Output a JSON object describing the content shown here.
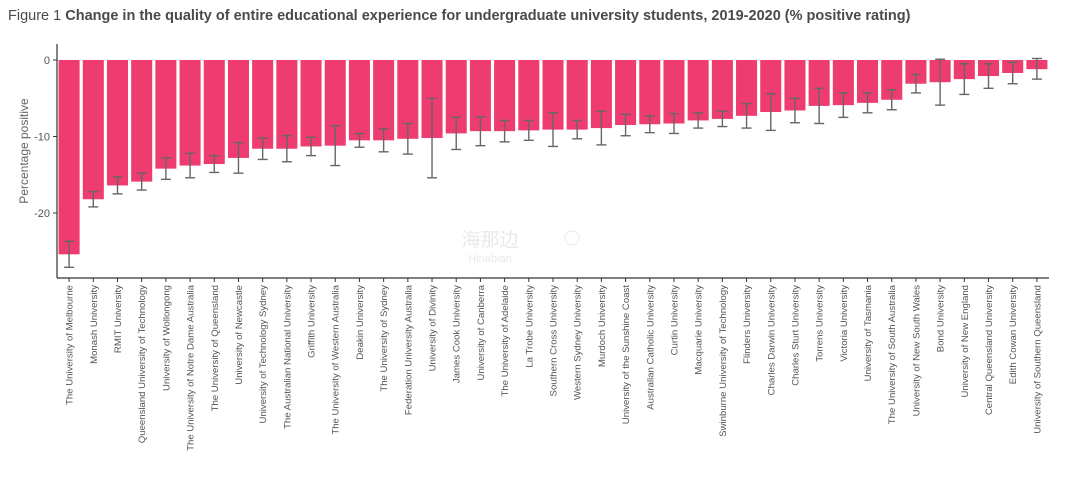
{
  "figure": {
    "label": "Figure 1",
    "title": "Change in the quality of entire educational experience for undergraduate university students, 2019-2020 (% positive rating)"
  },
  "watermark": {
    "line1": "海那边",
    "line2": "Hinabian"
  },
  "colors": {
    "bar": "#ee3b70",
    "error": "#666666",
    "axis": "#333333",
    "text": "#555555"
  },
  "chart_data": {
    "type": "bar",
    "title": "Change in the quality of entire educational experience for undergraduate university students, 2019-2020 (% positive rating)",
    "xlabel": "",
    "ylabel": "Percentage positive",
    "ylim": [
      -28.5,
      1
    ],
    "yticks": [
      0,
      -10,
      -20
    ],
    "ytick_labels": [
      "0",
      "-10",
      "-20"
    ],
    "grid": false,
    "legend": "none",
    "categories": [
      "The University of Melbourne",
      "Monash University",
      "RMIT University",
      "Queensland University of Technology",
      "University of Wollongong",
      "The University of Notre Dame Australia",
      "The University of Queensland",
      "University of Newcastle",
      "University of Technology Sydney",
      "The Australian National University",
      "Griffith University",
      "The University of Western Australia",
      "Deakin University",
      "The University of Sydney",
      "Federation University Australia",
      "University of Divinity",
      "James Cook University",
      "University of Canberra",
      "The University of Adelaide",
      "La Trobe University",
      "Southern Cross University",
      "Western Sydney University",
      "Murdoch University",
      "University of the Sunshine Coast",
      "Australian Catholic University",
      "Curtin University",
      "Macquarie University",
      "Swinburne University of Technology",
      "Flinders University",
      "Charles Darwin University",
      "Charles Sturt University",
      "Torrens University",
      "Victoria University",
      "University of Tasmania",
      "The University of South Australia",
      "University of New South Wales",
      "Bond University",
      "University of New England",
      "Central Queensland University",
      "Edith Cowan University",
      "University of Southern Queensland"
    ],
    "values": [
      -25.4,
      -18.2,
      -16.4,
      -15.9,
      -14.2,
      -13.8,
      -13.6,
      -12.8,
      -11.6,
      -11.6,
      -11.3,
      -11.2,
      -10.5,
      -10.5,
      -10.3,
      -10.2,
      -9.6,
      -9.3,
      -9.3,
      -9.2,
      -9.1,
      -9.1,
      -8.9,
      -8.5,
      -8.4,
      -8.3,
      -7.9,
      -7.7,
      -7.3,
      -6.8,
      -6.6,
      -6.0,
      -5.9,
      -5.6,
      -5.2,
      -3.1,
      -2.9,
      -2.5,
      -2.1,
      -1.7,
      -1.2
    ],
    "error_low": [
      -27.1,
      -19.2,
      -17.5,
      -17.0,
      -15.6,
      -15.4,
      -14.7,
      -14.8,
      -13.0,
      -13.3,
      -12.5,
      -13.8,
      -11.4,
      -12.0,
      -12.3,
      -15.4,
      -11.7,
      -11.2,
      -10.7,
      -10.5,
      -11.3,
      -10.3,
      -11.1,
      -9.9,
      -9.5,
      -9.6,
      -8.9,
      -8.7,
      -8.9,
      -9.2,
      -8.2,
      -8.3,
      -7.5,
      -6.9,
      -6.5,
      -4.3,
      -5.9,
      -4.5,
      -3.7,
      -3.1,
      -2.5
    ],
    "error_high": [
      -23.7,
      -17.2,
      -15.3,
      -14.8,
      -12.8,
      -12.2,
      -12.5,
      -10.8,
      -10.2,
      -9.9,
      -10.1,
      -8.6,
      -9.6,
      -9.0,
      -8.3,
      -5.0,
      -7.5,
      -7.4,
      -7.9,
      -7.9,
      -6.9,
      -7.9,
      -6.7,
      -7.1,
      -7.3,
      -7.0,
      -6.9,
      -6.7,
      -5.7,
      -4.4,
      -5.0,
      -3.7,
      -4.3,
      -4.3,
      -3.9,
      -1.9,
      0.1,
      -0.5,
      -0.5,
      -0.3,
      0.2
    ]
  }
}
